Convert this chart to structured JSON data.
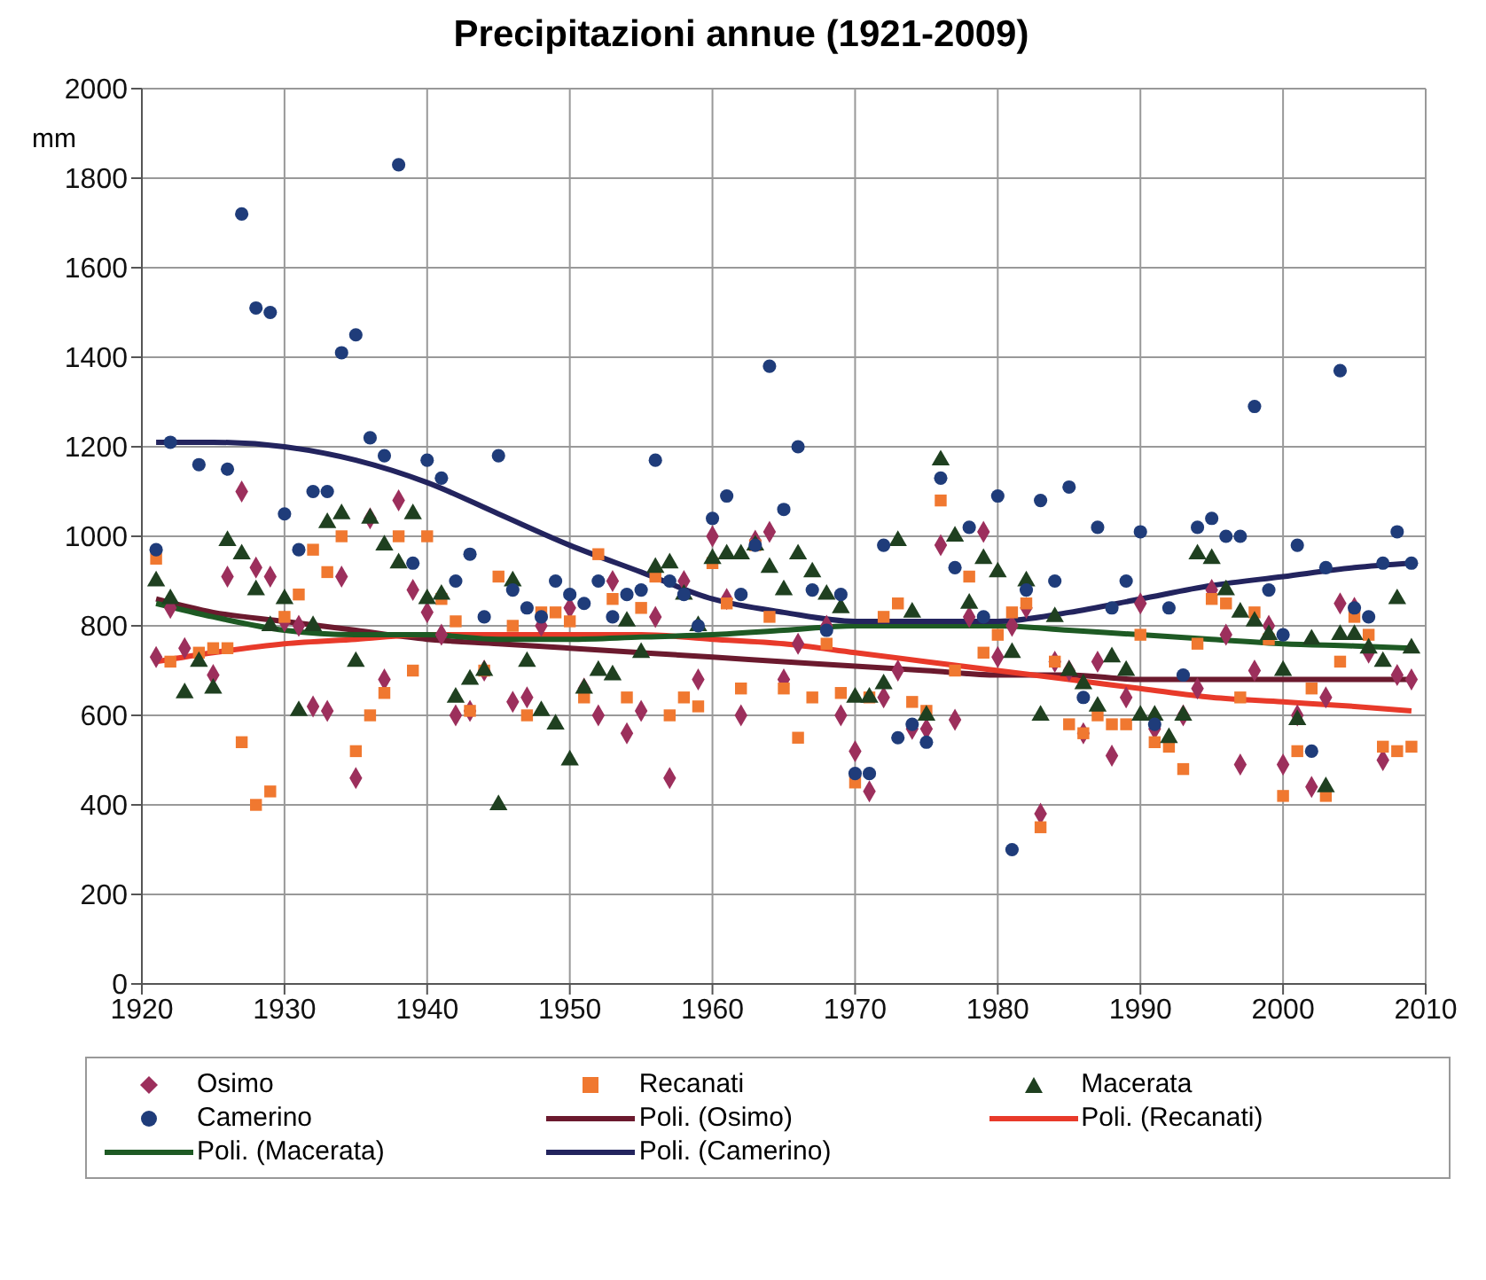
{
  "chart_data": {
    "type": "scatter",
    "title": "Precipitazioni annue (1921-2009)",
    "ylabel": "mm",
    "xlim": [
      1920,
      2010
    ],
    "xticks": [
      1920,
      1930,
      1940,
      1950,
      1960,
      1970,
      1980,
      1990,
      2000,
      2010
    ],
    "ylim": [
      0,
      2000
    ],
    "yticks": [
      0,
      200,
      400,
      600,
      800,
      1000,
      1200,
      1400,
      1600,
      1800,
      2000
    ],
    "grid": true,
    "legend": "bottom",
    "series": [
      {
        "name": "Osimo",
        "marker": "diamond",
        "color": "#9c2f5c",
        "x": [
          1921,
          1922,
          1923,
          1925,
          1926,
          1927,
          1928,
          1929,
          1930,
          1931,
          1932,
          1933,
          1934,
          1935,
          1936,
          1937,
          1938,
          1939,
          1940,
          1941,
          1942,
          1943,
          1944,
          1946,
          1947,
          1948,
          1950,
          1951,
          1952,
          1953,
          1954,
          1955,
          1956,
          1957,
          1958,
          1959,
          1960,
          1961,
          1962,
          1963,
          1964,
          1965,
          1966,
          1968,
          1969,
          1970,
          1971,
          1972,
          1973,
          1974,
          1975,
          1976,
          1977,
          1978,
          1979,
          1980,
          1981,
          1982,
          1983,
          1984,
          1985,
          1986,
          1987,
          1988,
          1989,
          1990,
          1991,
          1992,
          1993,
          1994,
          1995,
          1996,
          1997,
          1998,
          1999,
          2000,
          2001,
          2002,
          2003,
          2004,
          2005,
          2006,
          2007,
          2008,
          2009
        ],
        "values": [
          730,
          840,
          750,
          690,
          910,
          1100,
          930,
          910,
          810,
          800,
          620,
          610,
          910,
          460,
          1040,
          680,
          1080,
          880,
          830,
          780,
          600,
          610,
          700,
          630,
          640,
          800,
          840,
          660,
          600,
          900,
          560,
          610,
          820,
          460,
          900,
          680,
          1000,
          860,
          600,
          990,
          1010,
          680,
          760,
          800,
          600,
          520,
          430,
          640,
          700,
          570,
          570,
          980,
          590,
          820,
          1010,
          730,
          800,
          840,
          380,
          720,
          700,
          560,
          720,
          510,
          640,
          850,
          570,
          null,
          600,
          660,
          880,
          780,
          490,
          700,
          800,
          490,
          600,
          440,
          640,
          850,
          840,
          740,
          500,
          690,
          680
        ]
      },
      {
        "name": "Recanati",
        "marker": "square",
        "color": "#f07830",
        "x": [
          1921,
          1922,
          1924,
          1925,
          1926,
          1927,
          1928,
          1929,
          1930,
          1931,
          1932,
          1933,
          1934,
          1935,
          1936,
          1937,
          1938,
          1939,
          1940,
          1941,
          1942,
          1943,
          1944,
          1945,
          1946,
          1947,
          1948,
          1949,
          1950,
          1951,
          1952,
          1953,
          1954,
          1955,
          1956,
          1957,
          1958,
          1959,
          1960,
          1961,
          1962,
          1963,
          1964,
          1965,
          1966,
          1967,
          1968,
          1969,
          1970,
          1971,
          1972,
          1973,
          1974,
          1975,
          1976,
          1977,
          1978,
          1979,
          1980,
          1981,
          1982,
          1983,
          1984,
          1985,
          1986,
          1987,
          1988,
          1989,
          1990,
          1991,
          1992,
          1993,
          1994,
          1995,
          1996,
          1997,
          1998,
          1999,
          2000,
          2001,
          2002,
          2003,
          2004,
          2005,
          2006,
          2007,
          2008,
          2009
        ],
        "values": [
          950,
          720,
          740,
          750,
          750,
          540,
          400,
          430,
          820,
          870,
          970,
          920,
          1000,
          520,
          600,
          650,
          1000,
          700,
          1000,
          860,
          810,
          610,
          700,
          910,
          800,
          600,
          830,
          830,
          810,
          640,
          960,
          860,
          640,
          840,
          910,
          600,
          640,
          620,
          940,
          850,
          660,
          980,
          820,
          660,
          550,
          640,
          760,
          650,
          450,
          640,
          820,
          850,
          630,
          610,
          1080,
          700,
          910,
          740,
          780,
          830,
          850,
          350,
          720,
          580,
          560,
          600,
          580,
          580,
          780,
          540,
          530,
          480,
          760,
          860,
          850,
          640,
          830,
          770,
          420,
          520,
          660,
          420,
          720,
          820,
          780,
          530,
          520,
          530
        ]
      },
      {
        "name": "Macerata",
        "marker": "triangle",
        "color": "#1f4020",
        "x": [
          1921,
          1922,
          1923,
          1924,
          1925,
          1926,
          1927,
          1928,
          1929,
          1930,
          1931,
          1932,
          1933,
          1934,
          1935,
          1936,
          1937,
          1938,
          1939,
          1940,
          1941,
          1942,
          1943,
          1944,
          1945,
          1946,
          1947,
          1948,
          1949,
          1950,
          1951,
          1952,
          1953,
          1954,
          1955,
          1956,
          1957,
          1958,
          1959,
          1960,
          1961,
          1962,
          1963,
          1964,
          1965,
          1966,
          1967,
          1968,
          1969,
          1970,
          1971,
          1972,
          1973,
          1974,
          1975,
          1976,
          1977,
          1978,
          1979,
          1980,
          1981,
          1982,
          1983,
          1984,
          1985,
          1986,
          1987,
          1988,
          1989,
          1990,
          1991,
          1992,
          1993,
          1994,
          1995,
          1996,
          1997,
          1998,
          1999,
          2000,
          2001,
          2002,
          2003,
          2004,
          2005,
          2006,
          2007,
          2008,
          2009
        ],
        "values": [
          900,
          860,
          650,
          720,
          660,
          990,
          960,
          880,
          800,
          860,
          610,
          800,
          1030,
          1050,
          720,
          1040,
          980,
          940,
          1050,
          860,
          870,
          640,
          680,
          700,
          400,
          900,
          720,
          610,
          580,
          500,
          660,
          700,
          690,
          810,
          740,
          930,
          940,
          870,
          800,
          950,
          960,
          960,
          980,
          930,
          880,
          960,
          920,
          870,
          840,
          640,
          640,
          670,
          990,
          830,
          600,
          1170,
          1000,
          850,
          950,
          920,
          740,
          900,
          600,
          820,
          700,
          670,
          620,
          730,
          700,
          600,
          600,
          550,
          600,
          960,
          950,
          880,
          830,
          810,
          780,
          700,
          590,
          770,
          440,
          780,
          780,
          750,
          720,
          860,
          750
        ]
      },
      {
        "name": "Camerino",
        "marker": "circle",
        "color": "#1f3c7a",
        "x": [
          1921,
          1922,
          1924,
          1926,
          1927,
          1928,
          1929,
          1930,
          1931,
          1932,
          1933,
          1934,
          1935,
          1936,
          1937,
          1938,
          1939,
          1940,
          1941,
          1942,
          1943,
          1944,
          1945,
          1946,
          1947,
          1948,
          1949,
          1950,
          1951,
          1952,
          1953,
          1954,
          1955,
          1956,
          1957,
          1958,
          1959,
          1960,
          1961,
          1962,
          1963,
          1964,
          1965,
          1966,
          1967,
          1968,
          1969,
          1970,
          1971,
          1972,
          1973,
          1974,
          1975,
          1976,
          1977,
          1978,
          1979,
          1980,
          1981,
          1982,
          1983,
          1984,
          1985,
          1986,
          1987,
          1988,
          1989,
          1990,
          1991,
          1992,
          1993,
          1994,
          1995,
          1996,
          1997,
          1998,
          1999,
          2000,
          2001,
          2002,
          2003,
          2004,
          2005,
          2006,
          2007,
          2008,
          2009
        ],
        "values": [
          970,
          1210,
          1160,
          1150,
          1720,
          1510,
          1500,
          1050,
          970,
          1100,
          1100,
          1410,
          1450,
          1220,
          1180,
          1830,
          940,
          1170,
          1130,
          900,
          960,
          820,
          1180,
          880,
          840,
          820,
          900,
          870,
          850,
          900,
          820,
          870,
          880,
          1170,
          900,
          870,
          800,
          1040,
          1090,
          870,
          980,
          1380,
          1060,
          1200,
          880,
          790,
          870,
          470,
          470,
          980,
          550,
          580,
          540,
          1130,
          930,
          1020,
          820,
          1090,
          300,
          880,
          1080,
          900,
          1110,
          640,
          1020,
          840,
          900,
          1010,
          580,
          840,
          690,
          1020,
          1040,
          1000,
          1000,
          1290,
          880,
          780,
          980,
          520,
          930,
          1370,
          840,
          820,
          940,
          1010,
          940
        ]
      },
      {
        "name": "Poli. (Osimo)",
        "type": "line",
        "marker": "none",
        "color": "#6b1a2e",
        "x": [
          1921,
          1925,
          1930,
          1935,
          1940,
          1945,
          1950,
          1955,
          1960,
          1965,
          1970,
          1975,
          1980,
          1985,
          1990,
          1995,
          2000,
          2005,
          2009
        ],
        "values": [
          860,
          830,
          810,
          790,
          770,
          760,
          750,
          740,
          730,
          720,
          710,
          700,
          690,
          690,
          680,
          680,
          680,
          680,
          680
        ]
      },
      {
        "name": "Poli. (Recanati)",
        "type": "line",
        "marker": "none",
        "color": "#e83a2a",
        "x": [
          1921,
          1925,
          1930,
          1935,
          1940,
          1945,
          1950,
          1955,
          1960,
          1965,
          1970,
          1975,
          1980,
          1985,
          1990,
          1995,
          2000,
          2005,
          2009
        ],
        "values": [
          720,
          740,
          760,
          770,
          780,
          780,
          780,
          780,
          770,
          760,
          740,
          720,
          700,
          680,
          660,
          640,
          630,
          620,
          610
        ]
      },
      {
        "name": "Poli. (Macerata)",
        "type": "line",
        "marker": "none",
        "color": "#1e5a24",
        "x": [
          1921,
          1925,
          1930,
          1935,
          1940,
          1945,
          1950,
          1955,
          1960,
          1965,
          1970,
          1975,
          1980,
          1985,
          1990,
          1995,
          2000,
          2005,
          2009
        ],
        "values": [
          850,
          820,
          790,
          780,
          780,
          770,
          770,
          775,
          780,
          790,
          800,
          800,
          800,
          790,
          780,
          770,
          760,
          755,
          750
        ]
      },
      {
        "name": "Poli. (Camerino)",
        "type": "line",
        "marker": "none",
        "color": "#23245e",
        "x": [
          1921,
          1925,
          1930,
          1935,
          1940,
          1945,
          1950,
          1955,
          1960,
          1965,
          1970,
          1975,
          1980,
          1985,
          1990,
          1995,
          2000,
          2005,
          2009
        ],
        "values": [
          1210,
          1210,
          1200,
          1170,
          1120,
          1050,
          980,
          920,
          860,
          830,
          810,
          810,
          810,
          830,
          860,
          890,
          910,
          930,
          940
        ]
      }
    ]
  }
}
